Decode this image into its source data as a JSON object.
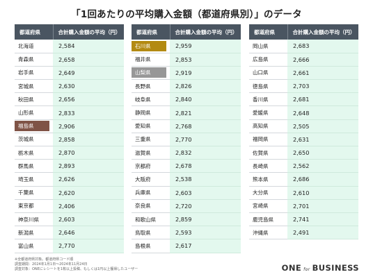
{
  "title": "「1回あたりの平均購入金額（都道府県別）」のデータ",
  "chart_data": {
    "type": "table",
    "columns": [
      "都道府県",
      "合計購入金額の平均（円）"
    ],
    "highlight_colors": {
      "brown": "#7f5346",
      "gold": "#b38a12",
      "gray": "#979797"
    },
    "tables": [
      {
        "rows": [
          {
            "name": "北海道",
            "value": "2,584"
          },
          {
            "name": "青森県",
            "value": "2,658"
          },
          {
            "name": "岩手県",
            "value": "2,649"
          },
          {
            "name": "宮城県",
            "value": "2,630"
          },
          {
            "name": "秋田県",
            "value": "2,656"
          },
          {
            "name": "山形県",
            "value": "2,833"
          },
          {
            "name": "福島県",
            "value": "2,906",
            "highlight": "brown"
          },
          {
            "name": "茨城県",
            "value": "2,858"
          },
          {
            "name": "栃木県",
            "value": "2,870"
          },
          {
            "name": "群馬県",
            "value": "2,893"
          },
          {
            "name": "埼玉県",
            "value": "2,626"
          },
          {
            "name": "千葉県",
            "value": "2,620"
          },
          {
            "name": "東京都",
            "value": "2,406"
          },
          {
            "name": "神奈川県",
            "value": "2,603"
          },
          {
            "name": "新潟県",
            "value": "2,646"
          },
          {
            "name": "富山県",
            "value": "2,770"
          }
        ]
      },
      {
        "rows": [
          {
            "name": "石川県",
            "value": "2,959",
            "highlight": "gold"
          },
          {
            "name": "福井県",
            "value": "2,853"
          },
          {
            "name": "山梨県",
            "value": "2,919",
            "highlight": "gray"
          },
          {
            "name": "長野県",
            "value": "2,826"
          },
          {
            "name": "岐阜県",
            "value": "2,840"
          },
          {
            "name": "静岡県",
            "value": "2,821"
          },
          {
            "name": "愛知県",
            "value": "2,768"
          },
          {
            "name": "三重県",
            "value": "2,770"
          },
          {
            "name": "滋賀県",
            "value": "2,832"
          },
          {
            "name": "京都府",
            "value": "2,678"
          },
          {
            "name": "大阪府",
            "value": "2,538"
          },
          {
            "name": "兵庫県",
            "value": "2,603"
          },
          {
            "name": "奈良県",
            "value": "2,720"
          },
          {
            "name": "和歌山県",
            "value": "2,859"
          },
          {
            "name": "鳥取県",
            "value": "2,593"
          },
          {
            "name": "島根県",
            "value": "2,617"
          }
        ]
      },
      {
        "rows": [
          {
            "name": "岡山県",
            "value": "2,683"
          },
          {
            "name": "広島県",
            "value": "2,666"
          },
          {
            "name": "山口県",
            "value": "2,661"
          },
          {
            "name": "徳島県",
            "value": "2,703"
          },
          {
            "name": "香川県",
            "value": "2,681"
          },
          {
            "name": "愛媛県",
            "value": "2,648"
          },
          {
            "name": "高知県",
            "value": "2,505"
          },
          {
            "name": "福岡県",
            "value": "2,631"
          },
          {
            "name": "佐賀県",
            "value": "2,650"
          },
          {
            "name": "長崎県",
            "value": "2,562"
          },
          {
            "name": "熊本県",
            "value": "2,686"
          },
          {
            "name": "大分県",
            "value": "2,610"
          },
          {
            "name": "宮崎県",
            "value": "2,701"
          },
          {
            "name": "鹿児島県",
            "value": "2,741"
          },
          {
            "name": "沖縄県",
            "value": "2,491"
          }
        ]
      }
    ]
  },
  "notes": [
    "※全都道府県対象。都道府県コード順",
    "調査期間：2024年1月1日〜2024年11月24日",
    "調査対象：ONEにレシートを1枚以上投稿、もしくは1円以上獲得したユーザー"
  ],
  "logo": {
    "left": "ONE",
    "for": "for",
    "right": "BUSINESS"
  }
}
